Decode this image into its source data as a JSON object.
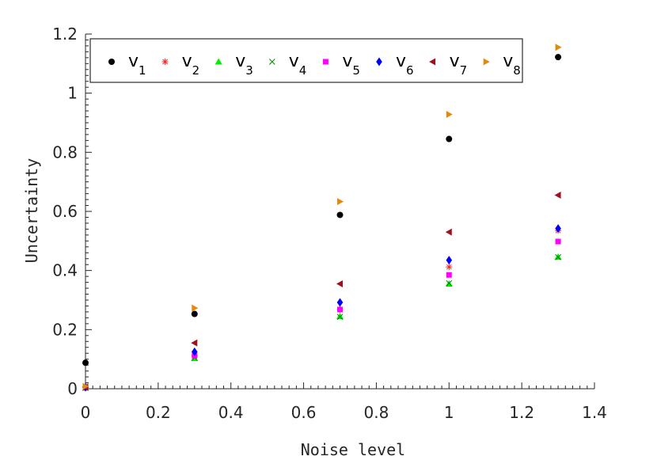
{
  "chart_data": {
    "type": "scatter",
    "title": "",
    "xlabel": "Noise level",
    "ylabel": "Uncertainty",
    "xlim": [
      0,
      1.4
    ],
    "ylim": [
      0,
      1.2
    ],
    "xticks": [
      "0",
      "0.2",
      "0.4",
      "0.6",
      "0.8",
      "1",
      "1.2",
      "1.4"
    ],
    "yticks": [
      "0",
      "0.2",
      "0.4",
      "0.6",
      "0.8",
      "1",
      "1.2"
    ],
    "grid": false,
    "legend_position": "top, horizontal",
    "x": [
      0,
      0.3,
      0.7,
      1.0,
      1.3
    ],
    "series": [
      {
        "name": "v",
        "sub": "1",
        "marker": "circle",
        "color": "#000000",
        "values": [
          0.088,
          0.253,
          0.588,
          0.845,
          1.122
        ]
      },
      {
        "name": "v",
        "sub": "2",
        "marker": "asterisk",
        "color": "#ff2020",
        "values": [
          0.005,
          0.11,
          0.268,
          0.412,
          0.535
        ]
      },
      {
        "name": "v",
        "sub": "3",
        "marker": "triangle-up",
        "color": "#00ee00",
        "values": [
          0.003,
          0.103,
          0.245,
          0.355,
          0.446
        ]
      },
      {
        "name": "v",
        "sub": "4",
        "marker": "x",
        "color": "#008800",
        "values": [
          0.003,
          0.105,
          0.243,
          0.357,
          0.445
        ]
      },
      {
        "name": "v",
        "sub": "5",
        "marker": "square",
        "color": "#ff00ff",
        "values": [
          0.004,
          0.112,
          0.268,
          0.385,
          0.498
        ]
      },
      {
        "name": "v",
        "sub": "6",
        "marker": "diamond",
        "color": "#0000ff",
        "values": [
          0.005,
          0.125,
          0.292,
          0.435,
          0.542
        ]
      },
      {
        "name": "v",
        "sub": "7",
        "marker": "triangle-left",
        "color": "#a01020",
        "values": [
          0.006,
          0.155,
          0.355,
          0.53,
          0.655
        ]
      },
      {
        "name": "v",
        "sub": "8",
        "marker": "triangle-right",
        "color": "#e08a10",
        "values": [
          0.008,
          0.273,
          0.633,
          0.928,
          1.155
        ]
      }
    ]
  }
}
